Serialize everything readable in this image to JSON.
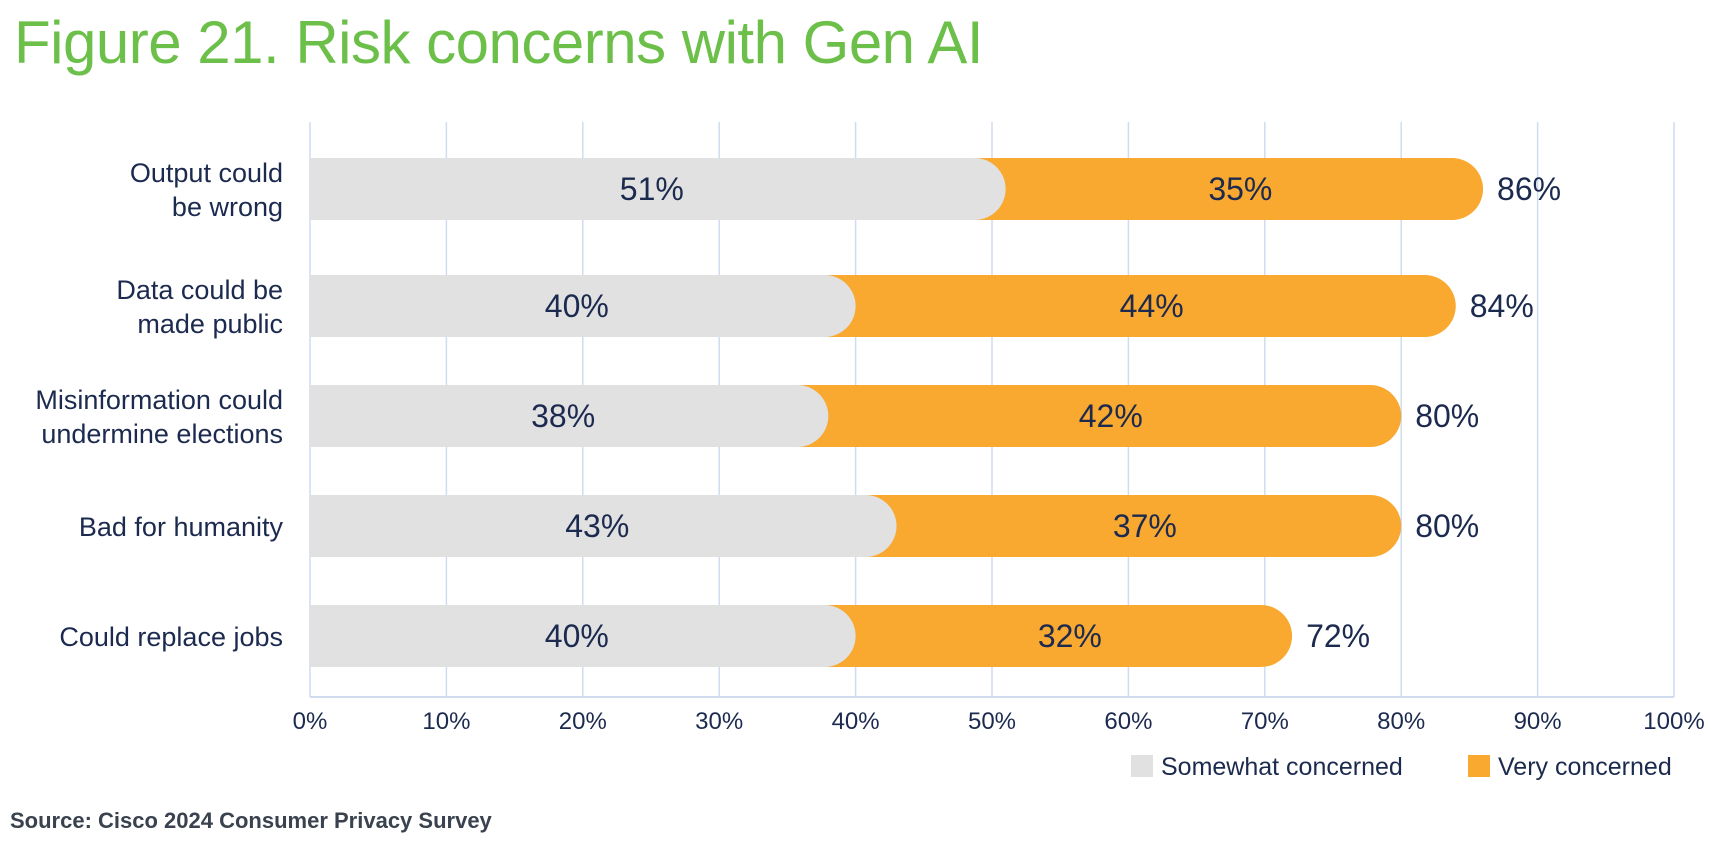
{
  "title": "Figure 21. Risk concerns with Gen AI",
  "source": "Source: Cisco 2024 Consumer Privacy Survey",
  "chart_data": {
    "type": "bar",
    "orientation": "horizontal",
    "stacked": true,
    "title": "Figure 21. Risk concerns with Gen AI",
    "categories": [
      [
        "Output could",
        "be wrong"
      ],
      [
        "Data could be",
        "made public"
      ],
      [
        "Misinformation could",
        "undermine elections"
      ],
      [
        "Bad for humanity"
      ],
      [
        "Could replace jobs"
      ]
    ],
    "series": [
      {
        "name": "Somewhat concerned",
        "color": "#e1e1e1",
        "values": [
          51,
          40,
          38,
          43,
          40
        ]
      },
      {
        "name": "Very concerned",
        "color": "#f9a830",
        "values": [
          35,
          44,
          42,
          37,
          32
        ]
      }
    ],
    "totals": [
      86,
      84,
      80,
      80,
      72
    ],
    "xlim": [
      0,
      100
    ],
    "xticks": [
      0,
      10,
      20,
      30,
      40,
      50,
      60,
      70,
      80,
      90,
      100
    ],
    "tick_suffix": "%",
    "grid": true,
    "legend_position": "bottom-right",
    "text_color": "#1b2a4e",
    "grid_color": "#cfdcef"
  }
}
